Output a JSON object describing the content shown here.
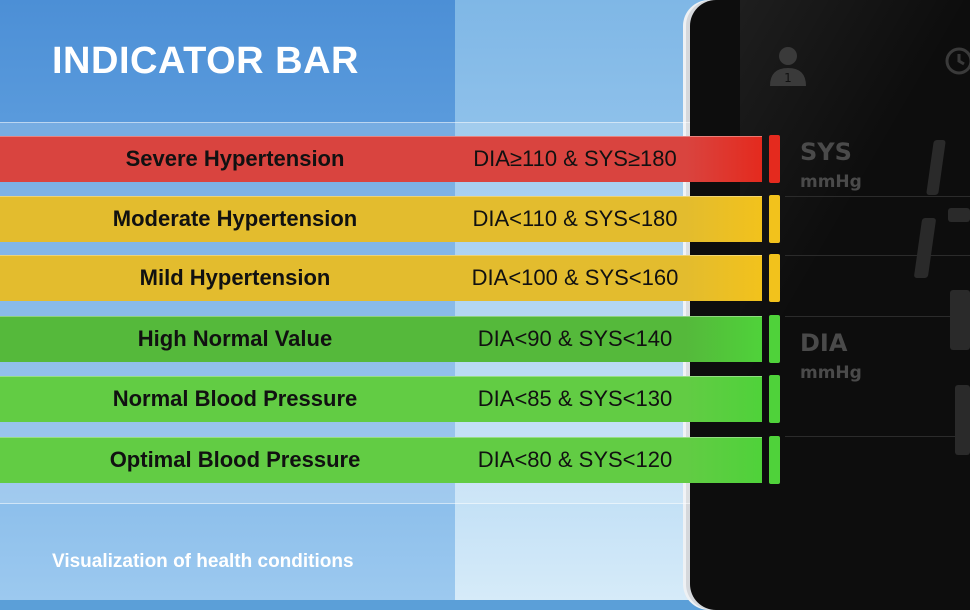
{
  "title": "INDICATOR BAR",
  "footer": "Visualization of health conditions",
  "display": {
    "sys_label": "SYS",
    "sys_unit": "mmHg",
    "dia_label": "DIA",
    "dia_unit": "mmHg",
    "user_number": "1"
  },
  "colors": {
    "red": "#d9443f",
    "yellow": "#e7bd2f",
    "green_dark": "#53b83c",
    "green": "#5fcf44"
  },
  "rows": [
    {
      "name": "Severe Hypertension",
      "condition": "DIA≥110 & SYS≥180",
      "color": "#d9443f",
      "indicator_color": "#e42a1e"
    },
    {
      "name": "Moderate Hypertension",
      "condition": "DIA<110 & SYS<180",
      "color": "#e3bc2e",
      "indicator_color": "#f2c21c"
    },
    {
      "name": "Mild Hypertension",
      "condition": "DIA<100 & SYS<160",
      "color": "#e3bc2e",
      "indicator_color": "#f2c21c"
    },
    {
      "name": "High Normal Value",
      "condition": "DIA<90 & SYS<140",
      "color": "#55b93b",
      "indicator_color": "#4fd23a"
    },
    {
      "name": "Normal Blood Pressure",
      "condition": "DIA<85 & SYS<130",
      "color": "#62cc44",
      "indicator_color": "#4fd23a"
    },
    {
      "name": "Optimal Blood Pressure",
      "condition": "DIA<80 & SYS<120",
      "color": "#62cc44",
      "indicator_color": "#4fd23a"
    }
  ]
}
